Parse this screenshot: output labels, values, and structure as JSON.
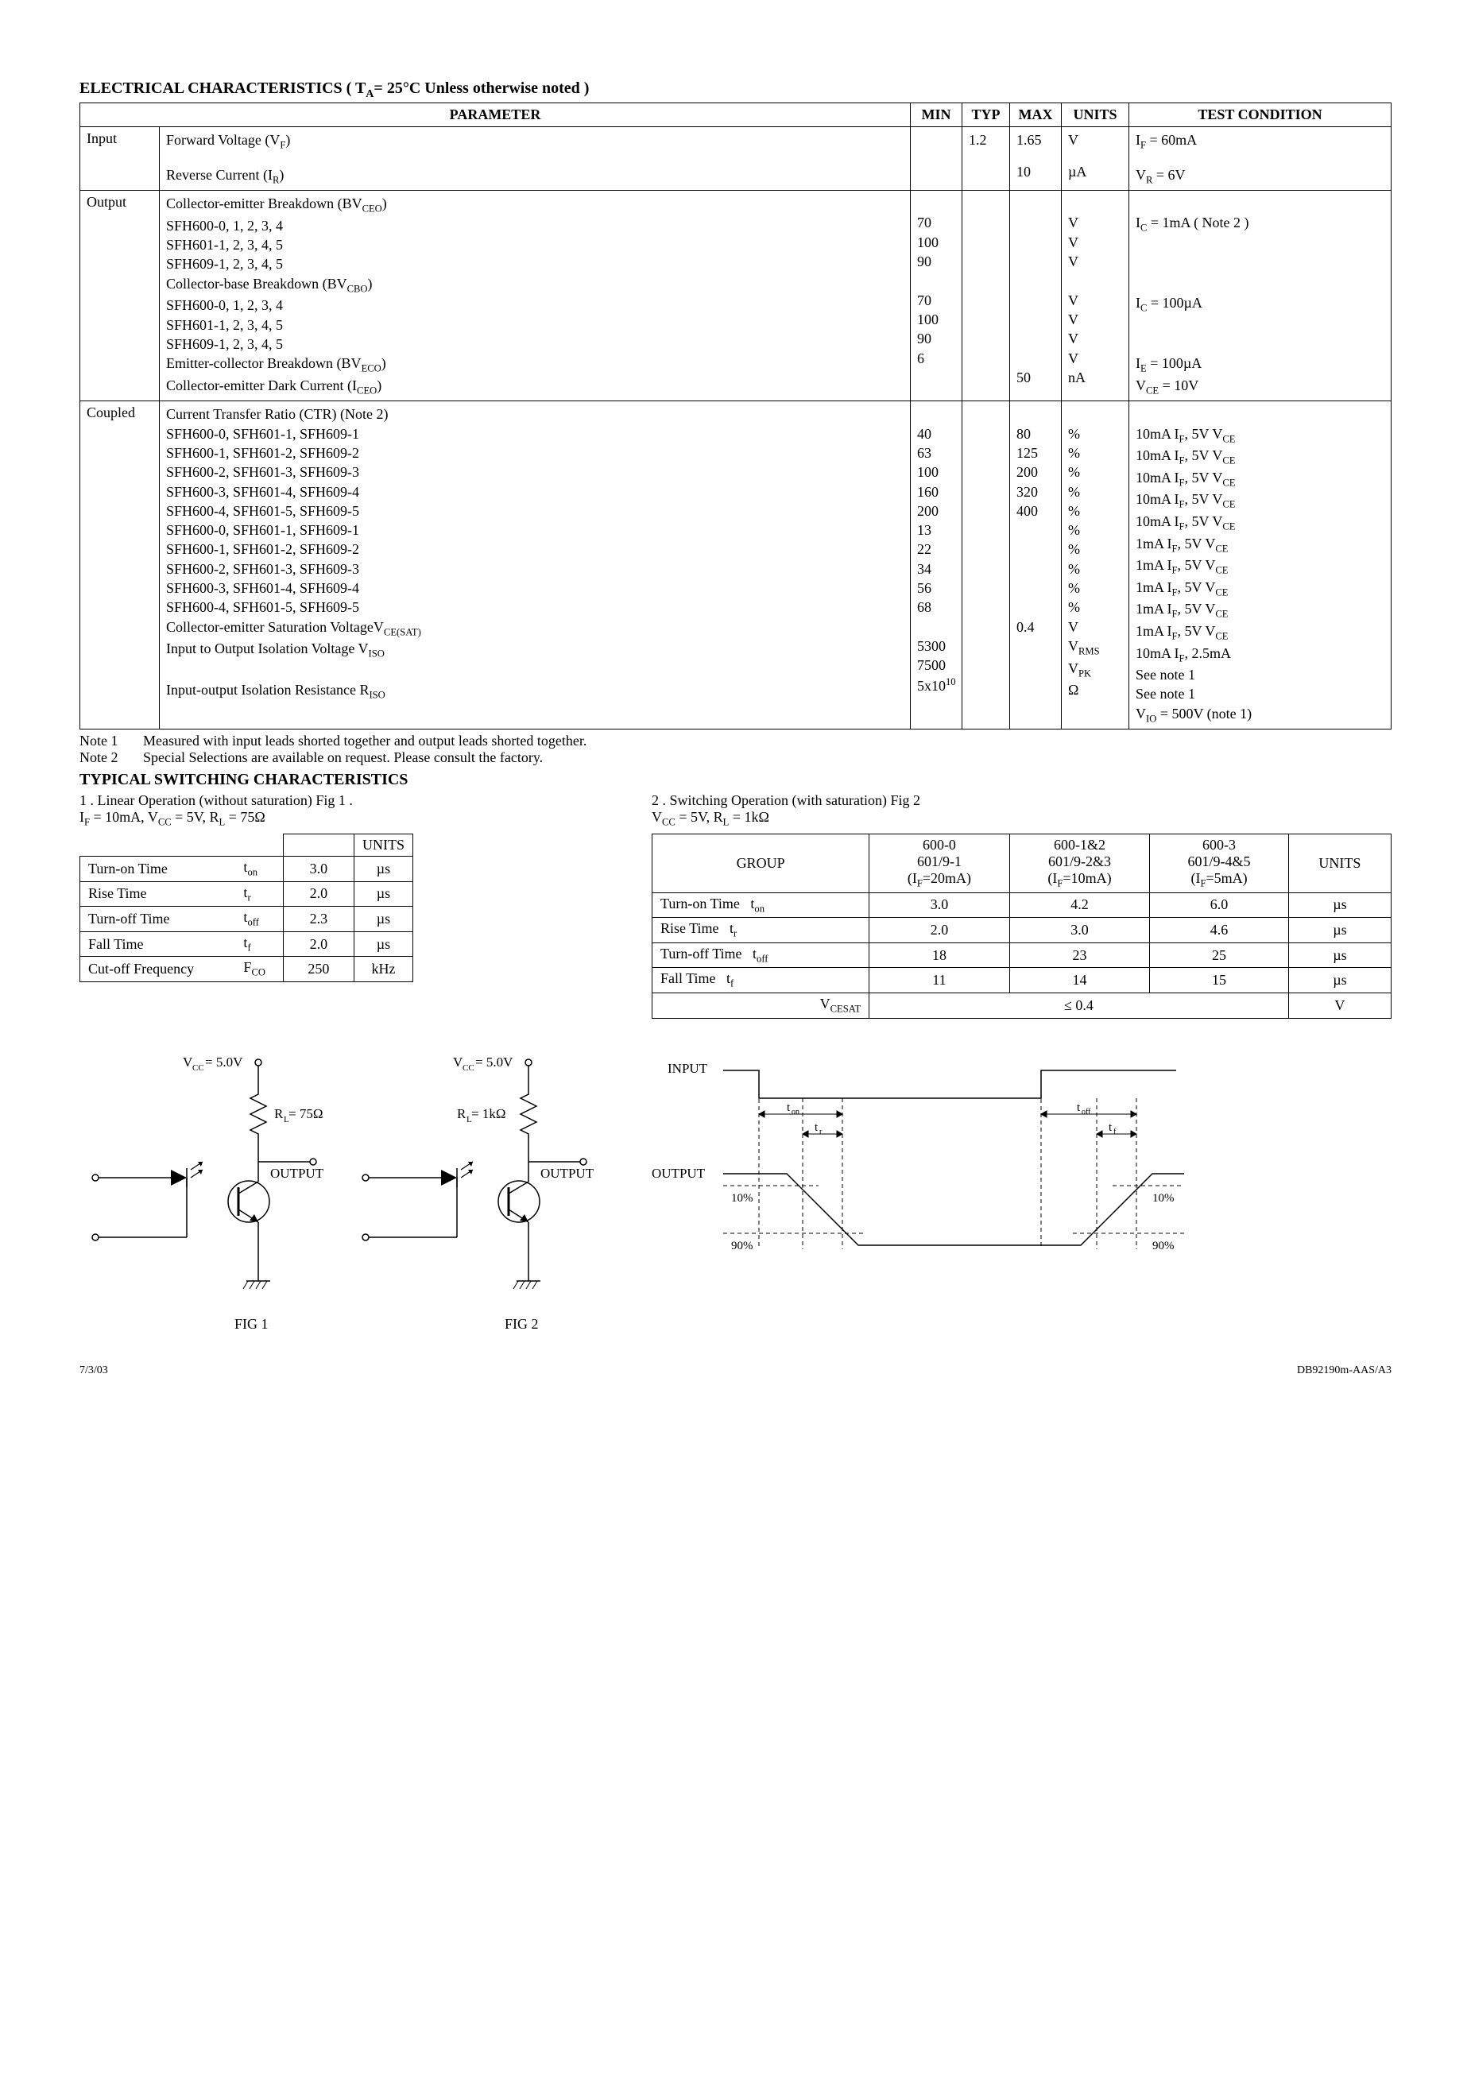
{
  "header": {
    "title_prefix": "ELECTRICAL CHARACTERISTICS ( T",
    "title_sub": "A",
    "title_suffix": "= 25°C Unless otherwise noted )"
  },
  "main_table": {
    "headers": [
      "PARAMETER",
      "MIN",
      "TYP",
      "MAX",
      "UNITS",
      "TEST CONDITION"
    ],
    "groups": [
      {
        "name": "Input",
        "rows": [
          {
            "param": "Forward Voltage (V",
            "param_sub": "F",
            "param_suffix": ")",
            "min": "",
            "typ": "1.2",
            "max": "1.65",
            "units": "V",
            "tc": "I",
            "tc_sub": "F",
            "tc_suffix": " = 60mA"
          },
          {
            "param": "Reverse Current (I",
            "param_sub": "R",
            "param_suffix": ")",
            "min": "",
            "typ": "",
            "max": "10",
            "units": "µA",
            "tc": "V",
            "tc_sub": "R",
            "tc_suffix": " = 6V",
            "gap_above": true
          }
        ]
      },
      {
        "name": "Output",
        "rows": [
          {
            "param": "Collector-emitter Breakdown (BV",
            "param_sub": "CEO",
            "param_suffix": ")"
          },
          {
            "param": "SFH600-0, 1, 2, 3, 4",
            "min": "70",
            "units": "V",
            "tc": "I",
            "tc_sub": "C",
            "tc_suffix": " = 1mA ( Note  2 )"
          },
          {
            "param": "SFH601-1, 2, 3, 4, 5",
            "min": "100",
            "units": "V"
          },
          {
            "param": "SFH609-1, 2, 3, 4, 5",
            "min": "90",
            "units": "V"
          },
          {
            "param": "Collector-base Breakdown (BV",
            "param_sub": "CBO",
            "param_suffix": ")"
          },
          {
            "param": "SFH600-0, 1, 2, 3, 4",
            "min": "70",
            "units": "V",
            "tc": "I",
            "tc_sub": "C",
            "tc_suffix": " = 100µA"
          },
          {
            "param": "SFH601-1, 2, 3, 4, 5",
            "min": "100",
            "units": "V"
          },
          {
            "param": "SFH609-1, 2, 3, 4, 5",
            "min": "90",
            "units": "V"
          },
          {
            "param": "Emitter-collector Breakdown (BV",
            "param_sub": "ECO",
            "param_suffix": ")",
            "min": "6",
            "units": "V",
            "tc": "I",
            "tc_sub": "E",
            "tc_suffix": " = 100µA"
          },
          {
            "param": "Collector-emitter Dark Current (I",
            "param_sub": "CEO",
            "param_suffix": ")",
            "max": "50",
            "units": "nA",
            "tc": "V",
            "tc_sub": "CE",
            "tc_suffix": " = 10V"
          }
        ]
      },
      {
        "name": "Coupled",
        "rows": [
          {
            "param": "Current Transfer Ratio (CTR) (Note 2)"
          },
          {
            "param": "SFH600-0, SFH601-1, SFH609-1",
            "min": "40",
            "max": "80",
            "units": "%",
            "tc": "10mA I",
            "tc_sub": "F",
            "tc_suffix": ", 5V V",
            "tc_sub2": "CE"
          },
          {
            "param": "SFH600-1, SFH601-2, SFH609-2",
            "min": "63",
            "max": "125",
            "units": "%",
            "tc": "10mA I",
            "tc_sub": "F",
            "tc_suffix": ", 5V V",
            "tc_sub2": "CE"
          },
          {
            "param": "SFH600-2, SFH601-3, SFH609-3",
            "min": "100",
            "max": "200",
            "units": "%",
            "tc": "10mA I",
            "tc_sub": "F",
            "tc_suffix": ", 5V V",
            "tc_sub2": "CE"
          },
          {
            "param": "SFH600-3, SFH601-4, SFH609-4",
            "min": "160",
            "max": "320",
            "units": "%",
            "tc": "10mA I",
            "tc_sub": "F",
            "tc_suffix": ", 5V V",
            "tc_sub2": "CE"
          },
          {
            "param": "SFH600-4, SFH601-5, SFH609-5",
            "min": "200",
            "max": "400",
            "units": "%",
            "tc": "10mA I",
            "tc_sub": "F",
            "tc_suffix": ", 5V V",
            "tc_sub2": "CE"
          },
          {
            "param": "SFH600-0, SFH601-1, SFH609-1",
            "min": "13",
            "units": "%",
            "tc": "1mA I",
            "tc_sub": "F",
            "tc_suffix": ", 5V V",
            "tc_sub2": "CE"
          },
          {
            "param": "SFH600-1, SFH601-2, SFH609-2",
            "min": "22",
            "units": "%",
            "tc": "1mA I",
            "tc_sub": "F",
            "tc_suffix": ", 5V V",
            "tc_sub2": "CE"
          },
          {
            "param": "SFH600-2, SFH601-3, SFH609-3",
            "min": "34",
            "units": "%",
            "tc": "1mA I",
            "tc_sub": "F",
            "tc_suffix": ", 5V V",
            "tc_sub2": "CE"
          },
          {
            "param": "SFH600-3, SFH601-4, SFH609-4",
            "min": "56",
            "units": "%",
            "tc": "1mA I",
            "tc_sub": "F",
            "tc_suffix": ", 5V V",
            "tc_sub2": "CE"
          },
          {
            "param": "SFH600-4, SFH601-5, SFH609-5",
            "min": "68",
            "units": "%",
            "tc": "1mA I",
            "tc_sub": "F",
            "tc_suffix": ", 5V V",
            "tc_sub2": "CE"
          },
          {
            "param": "Collector-emitter Saturation VoltageV",
            "param_sub": "CE(SAT)",
            "max": "0.4",
            "units": "V",
            "tc": "10mA I",
            "tc_sub": "F",
            "tc_suffix": ", 2.5mA"
          },
          {
            "param": "Input to Output Isolation Voltage V",
            "param_sub": "ISO",
            "min": "5300",
            "units": "V",
            "units_sub": "RMS",
            "tc": "See note 1"
          },
          {
            "param": "",
            "min": "7500",
            "units": "V",
            "units_sub": "PK",
            "tc": "See note 1"
          },
          {
            "param": "Input-output Isolation Resistance R",
            "param_sub": "ISO",
            "min": "5x10",
            "min_sup": "10",
            "units": "Ω",
            "tc": "V",
            "tc_sub": "IO",
            "tc_suffix": " = 500V (note 1)"
          }
        ]
      }
    ]
  },
  "notes": [
    {
      "label": "Note 1",
      "text": "Measured with input leads shorted together and output leads shorted together."
    },
    {
      "label": "Note 2",
      "text": "Special Selections are available on request. Please consult the factory."
    }
  ],
  "switching": {
    "title": "TYPICAL  SWITCHING  CHARACTERISTICS",
    "left": {
      "heading_a": "1 .  Linear Operation  (without saturation) Fig 1 .",
      "heading_b": "I",
      "hb_sub": "F",
      "hb_mid": " = 10mA, V",
      "hb_sub2": "CC",
      "hb_mid2": " = 5V, R",
      "hb_sub3": "L",
      "hb_end": " = 75Ω",
      "headers": [
        "",
        "",
        "UNITS"
      ],
      "rows": [
        {
          "name": "Turn-on Time",
          "sym": "t",
          "sym_sub": "on",
          "val": "3.0",
          "unit": "µs"
        },
        {
          "name": "Rise Time",
          "sym": "t",
          "sym_sub": "r",
          "val": "2.0",
          "unit": "µs"
        },
        {
          "name": "Turn-off Time",
          "sym": "t",
          "sym_sub": "off",
          "val": "2.3",
          "unit": "µs"
        },
        {
          "name": "Fall Time",
          "sym": "t",
          "sym_sub": "f",
          "val": "2.0",
          "unit": "µs"
        },
        {
          "name": "Cut-off Frequency",
          "sym": "F",
          "sym_sub": "CO",
          "val": "250",
          "unit": "kHz"
        }
      ]
    },
    "right": {
      "heading_a": "2 .   Switching Operation (with saturation) Fig 2",
      "heading_b": "V",
      "hb_sub": "CC",
      "hb_mid": " = 5V, R",
      "hb_sub2": "L",
      "hb_end": " = 1kΩ",
      "group_header": "GROUP",
      "cols": [
        {
          "l1": "600-0",
          "l2": "601/9-1",
          "l3": "(I",
          "l3_sub": "F",
          "l3_suf": "=20mA)"
        },
        {
          "l1": "600-1&2",
          "l2": "601/9-2&3",
          "l3": "(I",
          "l3_sub": "F",
          "l3_suf": "=10mA)"
        },
        {
          "l1": "600-3",
          "l2": "601/9-4&5",
          "l3": "(I",
          "l3_sub": "F",
          "l3_suf": "=5mA)"
        }
      ],
      "units_header": "UNITS",
      "rows": [
        {
          "name": "Turn-on Time",
          "sym": "t",
          "sym_sub": "on",
          "v": [
            "3.0",
            "4.2",
            "6.0"
          ],
          "unit": "µs"
        },
        {
          "name": "Rise Time",
          "sym": "t",
          "sym_sub": "r",
          "v": [
            "2.0",
            "3.0",
            "4.6"
          ],
          "unit": "µs"
        },
        {
          "name": "Turn-off Time",
          "sym": "t",
          "sym_sub": "off",
          "v": [
            "18",
            "23",
            "25"
          ],
          "unit": "µs"
        },
        {
          "name": "Fall Time",
          "sym": "t",
          "sym_sub": "f",
          "v": [
            "11",
            "14",
            "15"
          ],
          "unit": "µs"
        }
      ],
      "vcesat_label": "V",
      "vcesat_sub": "CESAT",
      "vcesat_val": "≤ 0.4",
      "vcesat_unit": "V"
    }
  },
  "figures": {
    "fig1": {
      "vcc": "V",
      "vcc_sub": "CC",
      "vcc_val": " = 5.0V",
      "rl": "R",
      "rl_sub": "L",
      "rl_val": " = 75Ω",
      "output": "OUTPUT",
      "caption": "FIG 1"
    },
    "fig2": {
      "vcc": "V",
      "vcc_sub": "CC",
      "vcc_val": " = 5.0V",
      "rl": "R",
      "rl_sub": "L",
      "rl_val": " = 1kΩ",
      "output": "OUTPUT",
      "caption": "FIG 2"
    },
    "timing": {
      "input": "INPUT",
      "output": "OUTPUT",
      "ton": "t",
      "ton_sub": "on",
      "tr": "t",
      "tr_sub": "r",
      "toff": "t",
      "toff_sub": "off",
      "tf": "t",
      "tf_sub": "f",
      "p10": "10%",
      "p90": "90%"
    }
  },
  "footer": {
    "left": "7/3/03",
    "right": "DB92190m-AAS/A3"
  }
}
